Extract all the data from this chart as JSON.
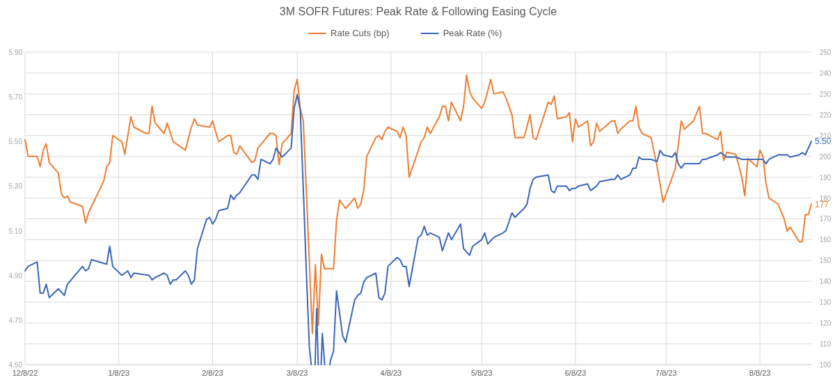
{
  "chart_data": {
    "type": "line",
    "title": "3M SOFR Futures: Peak Rate & Following Easing Cycle",
    "legend": "top",
    "grid": true,
    "line_style": "solid",
    "marker": "none",
    "xlim": [
      "2022-12-08",
      "2023-08-25"
    ],
    "xticks": [
      {
        "value": "2022-12-08",
        "label": "12/8/22"
      },
      {
        "value": "2023-01-08",
        "label": "1/8/23"
      },
      {
        "value": "2023-02-08",
        "label": "2/8/23"
      },
      {
        "value": "2023-03-08",
        "label": "3/8/23"
      },
      {
        "value": "2023-04-08",
        "label": "4/8/23"
      },
      {
        "value": "2023-05-08",
        "label": "5/8/23"
      },
      {
        "value": "2023-06-08",
        "label": "6/8/23"
      },
      {
        "value": "2023-07-08",
        "label": "7/8/23"
      },
      {
        "value": "2023-08-08",
        "label": "8/8/23"
      }
    ],
    "ylim": [
      4.5,
      5.9
    ],
    "yticks": [
      {
        "value": 4.5,
        "label": "4.50"
      },
      {
        "value": 4.7,
        "label": "4.70"
      },
      {
        "value": 4.9,
        "label": "4.90"
      },
      {
        "value": 5.1,
        "label": "5.10"
      },
      {
        "value": 5.3,
        "label": "5.30"
      },
      {
        "value": 5.5,
        "label": "5.50"
      },
      {
        "value": 5.7,
        "label": "5.70"
      },
      {
        "value": 5.9,
        "label": "5.90"
      }
    ],
    "y2lim": [
      100,
      250
    ],
    "y2ticks": [
      100,
      110,
      120,
      130,
      140,
      150,
      160,
      170,
      180,
      190,
      200,
      210,
      220,
      230,
      240,
      250
    ],
    "annotations": [
      {
        "text": "5.50",
        "x": "2023-08-25",
        "y": 5.5
      }
    ],
    "series": [
      {
        "name": "Rate Cuts (bp)",
        "color": "#ed7d31",
        "axis": "y2",
        "x": [
          "2022-12-08",
          "2022-12-09",
          "2022-12-12",
          "2022-12-13",
          "2022-12-14",
          "2022-12-15",
          "2022-12-16",
          "2022-12-19",
          "2022-12-20",
          "2022-12-21",
          "2022-12-22",
          "2022-12-23",
          "2022-12-27",
          "2022-12-28",
          "2022-12-29",
          "2023-01-03",
          "2023-01-04",
          "2023-01-05",
          "2023-01-06",
          "2023-01-09",
          "2023-01-10",
          "2023-01-12",
          "2023-01-13",
          "2023-01-17",
          "2023-01-18",
          "2023-01-19",
          "2023-01-20",
          "2023-01-23",
          "2023-01-24",
          "2023-01-26",
          "2023-01-27",
          "2023-01-30",
          "2023-02-01",
          "2023-02-02",
          "2023-02-03",
          "2023-02-07",
          "2023-02-08",
          "2023-02-10",
          "2023-02-13",
          "2023-02-14",
          "2023-02-15",
          "2023-02-16",
          "2023-02-17",
          "2023-02-21",
          "2023-02-22",
          "2023-02-23",
          "2023-02-27",
          "2023-02-28",
          "2023-03-01",
          "2023-03-02",
          "2023-03-03",
          "2023-03-06",
          "2023-03-07",
          "2023-03-08",
          "2023-03-09",
          "2023-03-10",
          "2023-03-11",
          "2023-03-13",
          "2023-03-14",
          "2023-03-15",
          "2023-03-16",
          "2023-03-17",
          "2023-03-20",
          "2023-03-21",
          "2023-03-22",
          "2023-03-24",
          "2023-03-27",
          "2023-03-28",
          "2023-03-29",
          "2023-03-30",
          "2023-03-31",
          "2023-04-03",
          "2023-04-04",
          "2023-04-05",
          "2023-04-06",
          "2023-04-07",
          "2023-04-10",
          "2023-04-11",
          "2023-04-12",
          "2023-04-13",
          "2023-04-14",
          "2023-04-18",
          "2023-04-19",
          "2023-04-20",
          "2023-04-21",
          "2023-04-24",
          "2023-04-25",
          "2023-04-26",
          "2023-04-27",
          "2023-04-28",
          "2023-05-01",
          "2023-05-02",
          "2023-05-03",
          "2023-05-04",
          "2023-05-05",
          "2023-05-08",
          "2023-05-09",
          "2023-05-11",
          "2023-05-12",
          "2023-05-15",
          "2023-05-16",
          "2023-05-17",
          "2023-05-18",
          "2023-05-19",
          "2023-05-22",
          "2023-05-24",
          "2023-05-25",
          "2023-05-26",
          "2023-05-30",
          "2023-05-31",
          "2023-06-01",
          "2023-06-02",
          "2023-06-05",
          "2023-06-06",
          "2023-06-07",
          "2023-06-08",
          "2023-06-09",
          "2023-06-12",
          "2023-06-13",
          "2023-06-14",
          "2023-06-15",
          "2023-06-16",
          "2023-06-20",
          "2023-06-21",
          "2023-06-22",
          "2023-06-23",
          "2023-06-26",
          "2023-06-27",
          "2023-06-28",
          "2023-06-29",
          "2023-06-30",
          "2023-07-03",
          "2023-07-05",
          "2023-07-07",
          "2023-07-11",
          "2023-07-13",
          "2023-07-14",
          "2023-07-17",
          "2023-07-19",
          "2023-07-20",
          "2023-07-21",
          "2023-07-25",
          "2023-07-26",
          "2023-07-27",
          "2023-07-28",
          "2023-07-31",
          "2023-08-02",
          "2023-08-03",
          "2023-08-04",
          "2023-08-07",
          "2023-08-08",
          "2023-08-09",
          "2023-08-10",
          "2023-08-11",
          "2023-08-14",
          "2023-08-16",
          "2023-08-17",
          "2023-08-18",
          "2023-08-21",
          "2023-08-22",
          "2023-08-23",
          "2023-08-24",
          "2023-08-25"
        ],
        "values": [
          208,
          200,
          200,
          195,
          203,
          206,
          197,
          192,
          182,
          180,
          181,
          178,
          176,
          168,
          173,
          188,
          195,
          197,
          210,
          207,
          201,
          219,
          214,
          211,
          211,
          224,
          216,
          211,
          216,
          207,
          206,
          203,
          214,
          218,
          215,
          214,
          217,
          207,
          210,
          210,
          202,
          201,
          205,
          197,
          198,
          204,
          211,
          211,
          210,
          196,
          206,
          211,
          232,
          237,
          223,
          217,
          184,
          115,
          148,
          119,
          153,
          146,
          146,
          169,
          179,
          175,
          180,
          175,
          177,
          184,
          200,
          209,
          210,
          208,
          212,
          214,
          212,
          209,
          214,
          210,
          190,
          207,
          209,
          214,
          211,
          219,
          224,
          224,
          217,
          226,
          217,
          224,
          239,
          231,
          228,
          223,
          226,
          237,
          230,
          231,
          228,
          224,
          220,
          209,
          209,
          220,
          209,
          208,
          226,
          225,
          229,
          218,
          219,
          221,
          207,
          218,
          214,
          217,
          205,
          207,
          216,
          212,
          217,
          217,
          211,
          213,
          217,
          217,
          224,
          214,
          211,
          209,
          195,
          178,
          194,
          217,
          213,
          217,
          224,
          211,
          211,
          208,
          212,
          198,
          202,
          201,
          190,
          181,
          199,
          195,
          203,
          200,
          187,
          180,
          177,
          170,
          164,
          166,
          159,
          159,
          172,
          172,
          177
        ],
        "value_labels": [
          null,
          null,
          null,
          null,
          null,
          null,
          null,
          null,
          null,
          null,
          null,
          null,
          null,
          null,
          null,
          null,
          null,
          null,
          null,
          null,
          null,
          null,
          null,
          null,
          null,
          null,
          null,
          null,
          null,
          null,
          null,
          null,
          null,
          null,
          null,
          null,
          null,
          null,
          null,
          null,
          null,
          null,
          null,
          null,
          null,
          null,
          null,
          null,
          null,
          null,
          null,
          null,
          null,
          null,
          null,
          null,
          null,
          null,
          null,
          null,
          null,
          null,
          null,
          null,
          null,
          null,
          null,
          null,
          null,
          null,
          null,
          null,
          null,
          null,
          null,
          null,
          null,
          null,
          null,
          null,
          null,
          null,
          null,
          null,
          null,
          null,
          null,
          null,
          null,
          null,
          null,
          null,
          null,
          null,
          null,
          null,
          null,
          null,
          null,
          null,
          null,
          null,
          null,
          null,
          null,
          null,
          null,
          null,
          null,
          null,
          null,
          null,
          null,
          null,
          null,
          null,
          null,
          null,
          null,
          null,
          null,
          null,
          null,
          null,
          null,
          null,
          null,
          null,
          null,
          null,
          null,
          null,
          null,
          null,
          null,
          null,
          null,
          null,
          null,
          null,
          null,
          null,
          null,
          null,
          null,
          null,
          null,
          null,
          null,
          null,
          null,
          null,
          null,
          null,
          null,
          null,
          null,
          null,
          null,
          null,
          null,
          null,
          "177"
        ]
      },
      {
        "name": "Peak Rate (%)",
        "color": "#3a66b8",
        "x": [
          "2022-12-08",
          "2022-12-09",
          "2022-12-12",
          "2022-12-13",
          "2022-12-14",
          "2022-12-15",
          "2022-12-16",
          "2022-12-19",
          "2022-12-21",
          "2022-12-22",
          "2022-12-27",
          "2022-12-28",
          "2022-12-29",
          "2022-12-30",
          "2023-01-04",
          "2023-01-05",
          "2023-01-06",
          "2023-01-09",
          "2023-01-10",
          "2023-01-11",
          "2023-01-12",
          "2023-01-13",
          "2023-01-18",
          "2023-01-19",
          "2023-01-20",
          "2023-01-23",
          "2023-01-24",
          "2023-01-25",
          "2023-01-26",
          "2023-01-27",
          "2023-01-30",
          "2023-01-31",
          "2023-02-01",
          "2023-02-02",
          "2023-02-03",
          "2023-02-06",
          "2023-02-07",
          "2023-02-08",
          "2023-02-09",
          "2023-02-10",
          "2023-02-13",
          "2023-02-14",
          "2023-02-15",
          "2023-02-16",
          "2023-02-17",
          "2023-02-21",
          "2023-02-22",
          "2023-02-23",
          "2023-02-24",
          "2023-02-27",
          "2023-02-28",
          "2023-03-01",
          "2023-03-03",
          "2023-03-06",
          "2023-03-07",
          "2023-03-08",
          "2023-03-09",
          "2023-03-10",
          "2023-03-11",
          "2023-03-12",
          "2023-03-12T15:00",
          "2023-03-13T06:00",
          "2023-03-13T22:00",
          "2023-03-14T10:00",
          "2023-03-14T23:00",
          "2023-03-15T10:00",
          "2023-03-15T22:00",
          "2023-03-16T07:00",
          "2023-03-17T02:00",
          "2023-03-18T00:00",
          "2023-03-18T19:00",
          "2023-03-19",
          "2023-03-20",
          "2023-03-21",
          "2023-03-23",
          "2023-03-24",
          "2023-03-27",
          "2023-03-28",
          "2023-03-29",
          "2023-03-30",
          "2023-03-31",
          "2023-04-03",
          "2023-04-04",
          "2023-04-05",
          "2023-04-06",
          "2023-04-07",
          "2023-04-10",
          "2023-04-11",
          "2023-04-12",
          "2023-04-13",
          "2023-04-14",
          "2023-04-17",
          "2023-04-18",
          "2023-04-19",
          "2023-04-20",
          "2023-04-21",
          "2023-04-24",
          "2023-04-25",
          "2023-04-27",
          "2023-04-28",
          "2023-05-01",
          "2023-05-02",
          "2023-05-04",
          "2023-05-05",
          "2023-05-08",
          "2023-05-09",
          "2023-05-10",
          "2023-05-12",
          "2023-05-15",
          "2023-05-16",
          "2023-05-17",
          "2023-05-18",
          "2023-05-19",
          "2023-05-22",
          "2023-05-23",
          "2023-05-24",
          "2023-05-25",
          "2023-05-26",
          "2023-05-30",
          "2023-05-31",
          "2023-06-01",
          "2023-06-02",
          "2023-06-05",
          "2023-06-06",
          "2023-06-07",
          "2023-06-08",
          "2023-06-09",
          "2023-06-12",
          "2023-06-13",
          "2023-06-14",
          "2023-06-15",
          "2023-06-16",
          "2023-06-20",
          "2023-06-21",
          "2023-06-22",
          "2023-06-23",
          "2023-06-26",
          "2023-06-27",
          "2023-06-28",
          "2023-06-29",
          "2023-06-30",
          "2023-07-03",
          "2023-07-05",
          "2023-07-06",
          "2023-07-07",
          "2023-07-10",
          "2023-07-11",
          "2023-07-12",
          "2023-07-13",
          "2023-07-14",
          "2023-07-17",
          "2023-07-19",
          "2023-07-20",
          "2023-07-21",
          "2023-07-25",
          "2023-07-26",
          "2023-07-27",
          "2023-07-28",
          "2023-07-31",
          "2023-08-02",
          "2023-08-03",
          "2023-08-04",
          "2023-08-07",
          "2023-08-09",
          "2023-08-10",
          "2023-08-11",
          "2023-08-14",
          "2023-08-16",
          "2023-08-17",
          "2023-08-18",
          "2023-08-21",
          "2023-08-22",
          "2023-08-23",
          "2023-08-25"
        ],
        "values": [
          4.92,
          4.94,
          4.96,
          4.82,
          4.82,
          4.86,
          4.8,
          4.84,
          4.81,
          4.86,
          4.94,
          4.92,
          4.93,
          4.97,
          4.95,
          5.03,
          4.94,
          4.9,
          4.91,
          4.92,
          4.89,
          4.91,
          4.9,
          4.88,
          4.89,
          4.91,
          4.9,
          4.86,
          4.88,
          4.88,
          4.92,
          4.9,
          4.86,
          4.88,
          5.02,
          5.15,
          5.16,
          5.13,
          5.15,
          5.19,
          5.2,
          5.26,
          5.24,
          5.26,
          5.27,
          5.35,
          5.35,
          5.33,
          5.42,
          5.4,
          5.42,
          5.47,
          5.43,
          5.47,
          5.65,
          5.71,
          5.64,
          5.29,
          4.92,
          4.58,
          4.5,
          null,
          4.5,
          4.75,
          4.5,
          null,
          4.5,
          4.64,
          4.5,
          null,
          4.5,
          4.52,
          4.56,
          4.83,
          4.63,
          4.6,
          4.79,
          4.81,
          4.82,
          4.87,
          4.89,
          4.91,
          4.8,
          4.79,
          4.82,
          4.94,
          4.98,
          4.97,
          4.94,
          4.94,
          4.85,
          5.07,
          5.08,
          5.12,
          5.08,
          5.09,
          5.07,
          5.01,
          5.09,
          5.06,
          5.13,
          5.02,
          4.99,
          5.03,
          5.06,
          5.09,
          5.04,
          5.07,
          5.09,
          5.1,
          5.14,
          5.18,
          5.16,
          5.2,
          5.22,
          5.29,
          5.33,
          5.34,
          5.35,
          5.28,
          5.27,
          5.3,
          5.3,
          5.28,
          5.29,
          5.29,
          5.3,
          5.31,
          5.28,
          5.29,
          5.3,
          5.32,
          5.33,
          5.33,
          5.35,
          5.33,
          5.35,
          5.38,
          5.38,
          5.43,
          5.42,
          5.42,
          5.41,
          5.46,
          5.44,
          5.43,
          5.45,
          5.4,
          5.38,
          5.4,
          5.4,
          5.4,
          5.42,
          5.42,
          5.44,
          5.45,
          5.44,
          5.43,
          5.43,
          5.42,
          5.42,
          5.42,
          5.42,
          5.42,
          5.4,
          5.42,
          5.44,
          5.44,
          5.44,
          5.43,
          5.44,
          5.45,
          5.44,
          5.5
        ]
      }
    ]
  }
}
